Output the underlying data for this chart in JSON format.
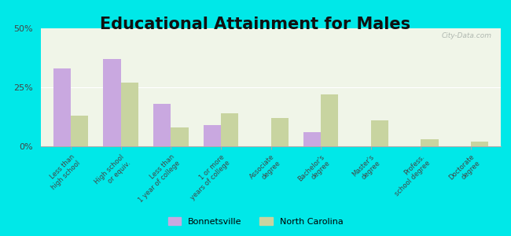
{
  "title": "Educational Attainment for Males",
  "categories": [
    "Less than\nhigh school",
    "High school\nor equiv.",
    "Less than\n1 year of college",
    "1 or more\nyears of college",
    "Associate\ndegree",
    "Bachelor's\ndegree",
    "Master's\ndegree",
    "Profess.\nschool degree",
    "Doctorate\ndegree"
  ],
  "bonnetsville": [
    33,
    37,
    18,
    9,
    0,
    6,
    0,
    0,
    0
  ],
  "north_carolina": [
    13,
    27,
    8,
    14,
    12,
    22,
    11,
    3,
    2
  ],
  "bonnetsville_color": "#c9a8e0",
  "nc_color": "#c8d4a0",
  "outer_background": "#00e8e8",
  "plot_bg": "#f0f5e8",
  "ylim": [
    0,
    50
  ],
  "yticks": [
    0,
    25,
    50
  ],
  "ytick_labels": [
    "0%",
    "25%",
    "50%"
  ],
  "legend_bonnetsville": "Bonnetsville",
  "legend_nc": "North Carolina",
  "title_fontsize": 15,
  "tick_fontsize": 6.0,
  "bar_width": 0.35
}
